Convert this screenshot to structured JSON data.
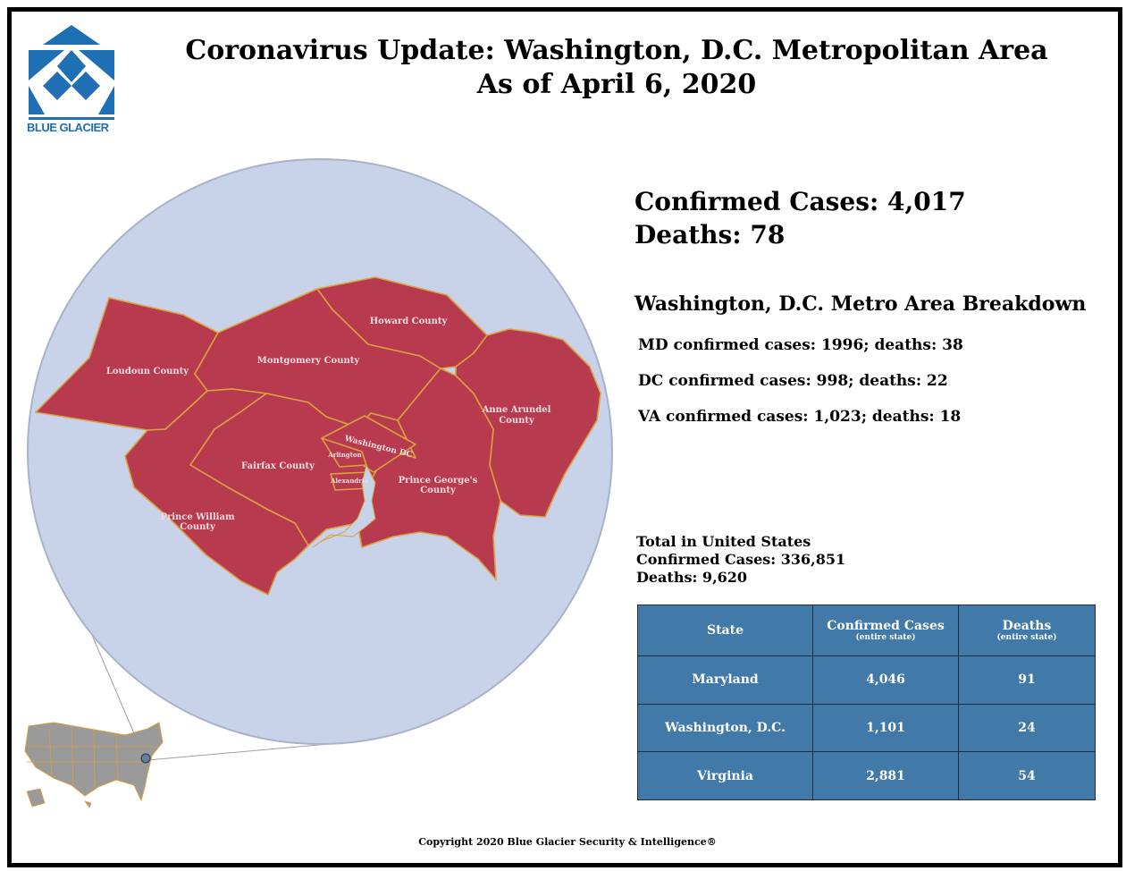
{
  "logo": {
    "text": "BLUE GLACIER",
    "color": "#1f6fb4"
  },
  "title": {
    "line1": "Coronavirus Update: Washington, D.C. Metropolitan Area",
    "line2": "As of April 6, 2020"
  },
  "summary": {
    "confirmed": "Confirmed Cases: 4,017",
    "deaths": "Deaths: 78"
  },
  "breakdown": {
    "title": "Washington, D.C. Metro Area Breakdown",
    "items": [
      "MD confirmed cases: 1996; deaths: 38",
      "DC confirmed cases: 998; deaths: 22",
      "VA confirmed cases: 1,023; deaths: 18"
    ]
  },
  "us_total": {
    "heading": "Total in United States",
    "confirmed": "Confirmed Cases: 336,851",
    "deaths": "Deaths: 9,620"
  },
  "table": {
    "headers": [
      {
        "label": "State",
        "sub": ""
      },
      {
        "label": "Confirmed Cases",
        "sub": "(entire state)"
      },
      {
        "label": "Deaths",
        "sub": "(entire state)"
      }
    ],
    "rows": [
      [
        "Maryland",
        "4,046",
        "91"
      ],
      [
        "Washington, D.C.",
        "1,101",
        "24"
      ],
      [
        "Virginia",
        "2,881",
        "54"
      ]
    ],
    "color": "#4179a9"
  },
  "map": {
    "counties": {
      "loudoun": "Loudoun County",
      "montgomery": "Montgomery County",
      "howard": "Howard County",
      "anne_arundel_1": "Anne Arundel",
      "anne_arundel_2": "County",
      "fairfax": "Fairfax County",
      "washington_dc": "Washington DC",
      "arlington": "Arlington",
      "alexandria": "Alexandria",
      "prince_georges_1": "Prince George's",
      "prince_georges_2": "County",
      "prince_william_1": "Prince William",
      "prince_william_2": "County"
    },
    "county_fill": "#b83a4f",
    "border_color": "#d9a040",
    "circle_fill": "#c8d2e8",
    "inset_fill": "#9a9a9a"
  },
  "copyright": "Copyright 2020 Blue Glacier Security & Intelligence®"
}
